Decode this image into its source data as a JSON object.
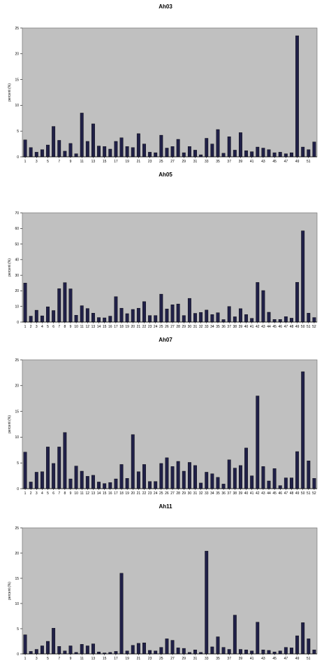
{
  "chart_data": [
    {
      "type": "bar",
      "title": "Ah03",
      "ylabel": "percent (%)",
      "ylim": [
        0,
        25
      ],
      "yticks": [
        0,
        5,
        10,
        15,
        20,
        25
      ],
      "grid": false,
      "bar_fill": "#202048",
      "plot_background": "#c0c0c0",
      "x_labels": [
        "1",
        "3",
        "5",
        "7",
        "9",
        "11",
        "13",
        "15",
        "17",
        "19",
        "21",
        "23",
        "25",
        "27",
        "29",
        "31",
        "33",
        "35",
        "37",
        "39",
        "41",
        "43",
        "45",
        "47",
        "49",
        "51"
      ],
      "categories": [
        "1",
        "2",
        "3",
        "4",
        "5",
        "6",
        "7",
        "8",
        "9",
        "10",
        "11",
        "12",
        "13",
        "14",
        "15",
        "16",
        "17",
        "18",
        "19",
        "20",
        "21",
        "22",
        "23",
        "24",
        "25",
        "26",
        "27",
        "28",
        "29",
        "30",
        "31",
        "32",
        "33",
        "34",
        "35",
        "36",
        "37",
        "38",
        "39",
        "40",
        "41",
        "42",
        "43",
        "44",
        "45",
        "46",
        "47",
        "48",
        "49",
        "50",
        "51",
        "52"
      ],
      "values": [
        3.3,
        1.8,
        0.9,
        1.4,
        2.3,
        5.9,
        3.2,
        1.1,
        2.6,
        0.6,
        8.5,
        3.0,
        6.4,
        2.1,
        2.0,
        1.5,
        3.0,
        3.7,
        2.0,
        1.8,
        4.5,
        2.5,
        0.9,
        0.8,
        4.2,
        1.7,
        2.0,
        3.4,
        0.8,
        2.0,
        1.3,
        0.4,
        3.6,
        2.5,
        5.3,
        0.7,
        3.9,
        1.3,
        4.7,
        1.2,
        1.0,
        1.9,
        1.7,
        1.4,
        0.8,
        0.9,
        0.6,
        0.8,
        23.5,
        1.9,
        1.4,
        2.9
      ]
    },
    {
      "type": "bar",
      "title": "Ah05",
      "ylabel": "percent (%)",
      "ylim": [
        0,
        70
      ],
      "yticks": [
        0,
        10,
        20,
        30,
        40,
        50,
        60,
        70
      ],
      "grid": false,
      "bar_fill": "#202048",
      "plot_background": "#c0c0c0",
      "x_labels": [
        "1",
        "2",
        "3",
        "4",
        "5",
        "6",
        "7",
        "8",
        "9",
        "10",
        "11",
        "12",
        "13",
        "14",
        "15",
        "16",
        "17",
        "18",
        "19",
        "20",
        "21",
        "22",
        "23",
        "24",
        "25",
        "26",
        "27",
        "28",
        "29",
        "30",
        "31",
        "32",
        "33",
        "34",
        "35",
        "36",
        "37",
        "38",
        "39",
        "40",
        "41",
        "42",
        "43",
        "44",
        "45",
        "46",
        "47",
        "48",
        "49",
        "50",
        "51",
        "52"
      ],
      "categories": [
        "1",
        "2",
        "3",
        "4",
        "5",
        "6",
        "7",
        "8",
        "9",
        "10",
        "11",
        "12",
        "13",
        "14",
        "15",
        "16",
        "17",
        "18",
        "19",
        "20",
        "21",
        "22",
        "23",
        "24",
        "25",
        "26",
        "27",
        "28",
        "29",
        "30",
        "31",
        "32",
        "33",
        "34",
        "35",
        "36",
        "37",
        "38",
        "39",
        "40",
        "41",
        "42",
        "43",
        "44",
        "45",
        "46",
        "47",
        "48",
        "49",
        "50",
        "51",
        "52"
      ],
      "values": [
        25.0,
        3.8,
        7.6,
        4.0,
        9.8,
        7.4,
        21.4,
        25.3,
        21.3,
        4.4,
        10.5,
        8.7,
        5.7,
        2.9,
        2.7,
        3.8,
        16.3,
        8.9,
        5.4,
        8.1,
        8.9,
        13.1,
        4.2,
        4.2,
        17.9,
        8.4,
        11.1,
        11.6,
        4.2,
        15.2,
        5.6,
        6.2,
        7.7,
        4.8,
        6.0,
        1.6,
        10.0,
        3.4,
        8.6,
        4.8,
        2.4,
        25.4,
        20.2,
        6.3,
        1.7,
        1.7,
        3.5,
        2.5,
        25.5,
        58.5,
        5.7,
        2.9
      ]
    },
    {
      "type": "bar",
      "title": "Ah07",
      "ylabel": "percent (%)",
      "ylim": [
        0,
        25
      ],
      "yticks": [
        0,
        5,
        10,
        15,
        20,
        25
      ],
      "grid": false,
      "bar_fill": "#202048",
      "plot_background": "#c0c0c0",
      "x_labels": [
        "1",
        "2",
        "3",
        "4",
        "5",
        "6",
        "7",
        "8",
        "9",
        "10",
        "11",
        "12",
        "13",
        "14",
        "15",
        "16",
        "17",
        "18",
        "19",
        "20",
        "21",
        "22",
        "23",
        "24",
        "25",
        "26",
        "27",
        "28",
        "29",
        "30",
        "31",
        "32",
        "33",
        "34",
        "35",
        "36",
        "37",
        "38",
        "39",
        "40",
        "41",
        "42",
        "43",
        "44",
        "45",
        "46",
        "47",
        "48",
        "49",
        "50",
        "51",
        "52"
      ],
      "categories": [
        "1",
        "2",
        "3",
        "4",
        "5",
        "6",
        "7",
        "8",
        "9",
        "10",
        "11",
        "12",
        "13",
        "14",
        "15",
        "16",
        "17",
        "18",
        "19",
        "20",
        "21",
        "22",
        "23",
        "24",
        "25",
        "26",
        "27",
        "28",
        "29",
        "30",
        "31",
        "32",
        "33",
        "34",
        "35",
        "36",
        "37",
        "38",
        "39",
        "40",
        "41",
        "42",
        "43",
        "44",
        "45",
        "46",
        "47",
        "48",
        "49",
        "50",
        "51",
        "52"
      ],
      "values": [
        7.1,
        1.3,
        3.2,
        3.3,
        8.1,
        4.9,
        8.1,
        10.9,
        1.9,
        4.4,
        3.4,
        2.4,
        2.6,
        1.3,
        1.0,
        1.2,
        1.9,
        4.7,
        2.0,
        10.5,
        3.3,
        4.7,
        1.4,
        1.4,
        4.9,
        6.0,
        4.3,
        5.3,
        3.4,
        5.1,
        4.5,
        1.1,
        3.2,
        2.9,
        2.2,
        0.9,
        5.6,
        4.0,
        4.5,
        7.9,
        2.5,
        18.0,
        4.3,
        1.5,
        3.9,
        0.6,
        2.1,
        2.1,
        7.2,
        22.7,
        5.4,
        2.0
      ]
    },
    {
      "type": "bar",
      "title": "Ah11",
      "ylabel": "percent (%)",
      "ylim": [
        0,
        25
      ],
      "yticks": [
        0,
        5,
        10,
        15,
        20,
        25
      ],
      "grid": false,
      "bar_fill": "#202048",
      "plot_background": "#c0c0c0",
      "x_labels": [
        "1",
        "3",
        "5",
        "7",
        "9",
        "11",
        "13",
        "15",
        "17",
        "19",
        "21",
        "23",
        "25",
        "27",
        "29",
        "31",
        "33",
        "35",
        "37",
        "39",
        "41",
        "43",
        "45",
        "47",
        "49",
        "51"
      ],
      "categories": [
        "1",
        "2",
        "3",
        "4",
        "5",
        "6",
        "7",
        "8",
        "9",
        "10",
        "11",
        "12",
        "13",
        "14",
        "15",
        "16",
        "17",
        "18",
        "19",
        "20",
        "21",
        "22",
        "23",
        "24",
        "25",
        "26",
        "27",
        "28",
        "29",
        "30",
        "31",
        "32",
        "33",
        "34",
        "35",
        "36",
        "37",
        "38",
        "39",
        "40",
        "41",
        "42",
        "43",
        "44",
        "45",
        "46",
        "47",
        "48",
        "49",
        "50",
        "51",
        "52"
      ],
      "values": [
        3.8,
        0.5,
        0.9,
        1.6,
        2.5,
        5.1,
        1.5,
        0.6,
        1.6,
        0.3,
        1.9,
        1.6,
        2.0,
        0.4,
        0.2,
        0.3,
        0.5,
        16.0,
        0.6,
        1.7,
        2.1,
        2.2,
        0.7,
        0.6,
        1.3,
        3.0,
        2.7,
        1.2,
        1.1,
        0.3,
        0.8,
        0.3,
        20.4,
        1.4,
        3.4,
        1.3,
        0.9,
        7.7,
        0.9,
        0.8,
        0.6,
        6.3,
        0.8,
        0.7,
        0.4,
        0.6,
        1.3,
        1.2,
        3.6,
        6.2,
        3.0,
        0.8
      ]
    }
  ]
}
